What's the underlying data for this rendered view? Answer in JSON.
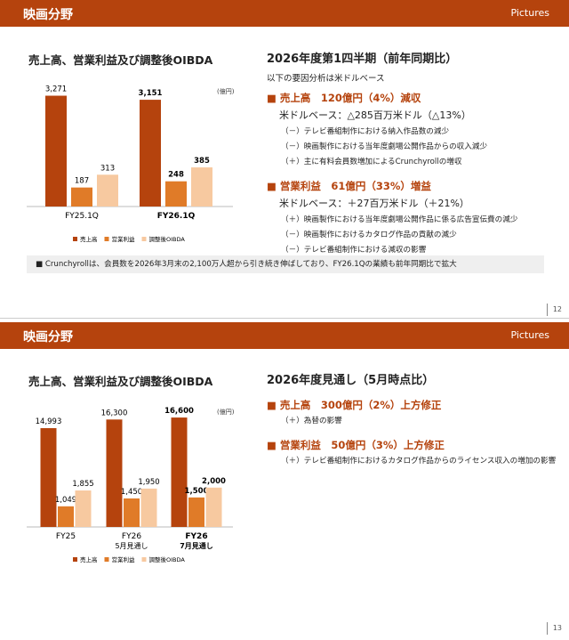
{
  "slides": [
    {
      "header": {
        "title": "映画分野",
        "brand": "Pictures"
      },
      "heading": "2026年度第1四半期（前年同期比）",
      "note": "以下の要因分析は米ドルベース",
      "sections": [
        {
          "title": "売上高　120億円（4%）減収",
          "subtitle": "米ドルベース：△285百万米ドル（△13%）",
          "items": [
            "（－）テレビ番組制作における納入作品数の減少",
            "（－）映画製作における当年度劇場公開作品からの収入減少",
            "（＋）主に有料会員数増加によるCrunchyrollの増収"
          ]
        },
        {
          "title": "営業利益　61億円（33%）増益",
          "subtitle": "米ドルベース：＋27百万米ドル（＋21%）",
          "items": [
            "（＋）映画製作における当年度劇場公開作品に係る広告宣伝費の減少",
            "（－）映画製作におけるカタログ作品の貢献の減少",
            "（－）テレビ番組制作における減収の影響"
          ]
        }
      ],
      "footnote": "Crunchyrollは、会員数を2026年3月末の2,100万人超から引き続き伸ばしており、FY26.1Qの業績も前年同期比で拡大",
      "page": "12"
    },
    {
      "header": {
        "title": "映画分野",
        "brand": "Pictures"
      },
      "heading": "2026年度見通し（5月時点比）",
      "sections": [
        {
          "title": "売上高　300億円（2%）上方修正",
          "items": [
            "（＋）為替の影響"
          ]
        },
        {
          "title": "営業利益　50億円（3%）上方修正",
          "items": [
            "（＋）テレビ番組制作におけるカタログ作品からのライセンス収入の増加の影響"
          ]
        }
      ],
      "page": "13"
    }
  ],
  "chart_data": [
    {
      "type": "bar",
      "title": "売上高、営業利益及び調整後OIBDA",
      "unit": "(億円)",
      "categories": [
        "FY25.1Q",
        "FY26.1Q"
      ],
      "series": [
        {
          "name": "売上高",
          "color": "#b5430d",
          "values": [
            3271,
            3151
          ],
          "value_labels": [
            "3,271",
            "3,151"
          ]
        },
        {
          "name": "営業利益",
          "color": "#e07b28",
          "axis": "y2",
          "values": [
            187,
            248
          ]
        },
        {
          "name": "調整後OIBDA",
          "color": "#f7c9a0",
          "axis": "y2",
          "values": [
            313,
            385
          ]
        }
      ],
      "ylim": [
        0,
        3600
      ],
      "y2lim": [
        0,
        1200
      ],
      "legend": "bottom"
    },
    {
      "type": "bar",
      "title": "売上高、営業利益及び調整後OIBDA",
      "unit": "(億円)",
      "categories": [
        "FY25",
        "FY26",
        "FY26"
      ],
      "category_notes": [
        null,
        "5月見通し",
        "7月見通し"
      ],
      "series": [
        {
          "name": "売上高",
          "color": "#b5430d",
          "values": [
            14993,
            16300,
            16600
          ],
          "value_labels": [
            "14,993",
            "16,300",
            "16,600"
          ]
        },
        {
          "name": "営業利益",
          "color": "#e07b28",
          "axis": "y2",
          "values": [
            1049,
            1450,
            1500
          ],
          "value_labels": [
            "1,049",
            "1,450",
            "1,500"
          ]
        },
        {
          "name": "調整後OIBDA",
          "color": "#f7c9a0",
          "axis": "y2",
          "values": [
            1855,
            1950,
            2000
          ],
          "value_labels": [
            "1,855",
            "1,950",
            "2,000"
          ]
        }
      ],
      "ylim": [
        0,
        18500
      ],
      "y2lim": [
        0,
        6200
      ],
      "legend": "bottom"
    }
  ]
}
